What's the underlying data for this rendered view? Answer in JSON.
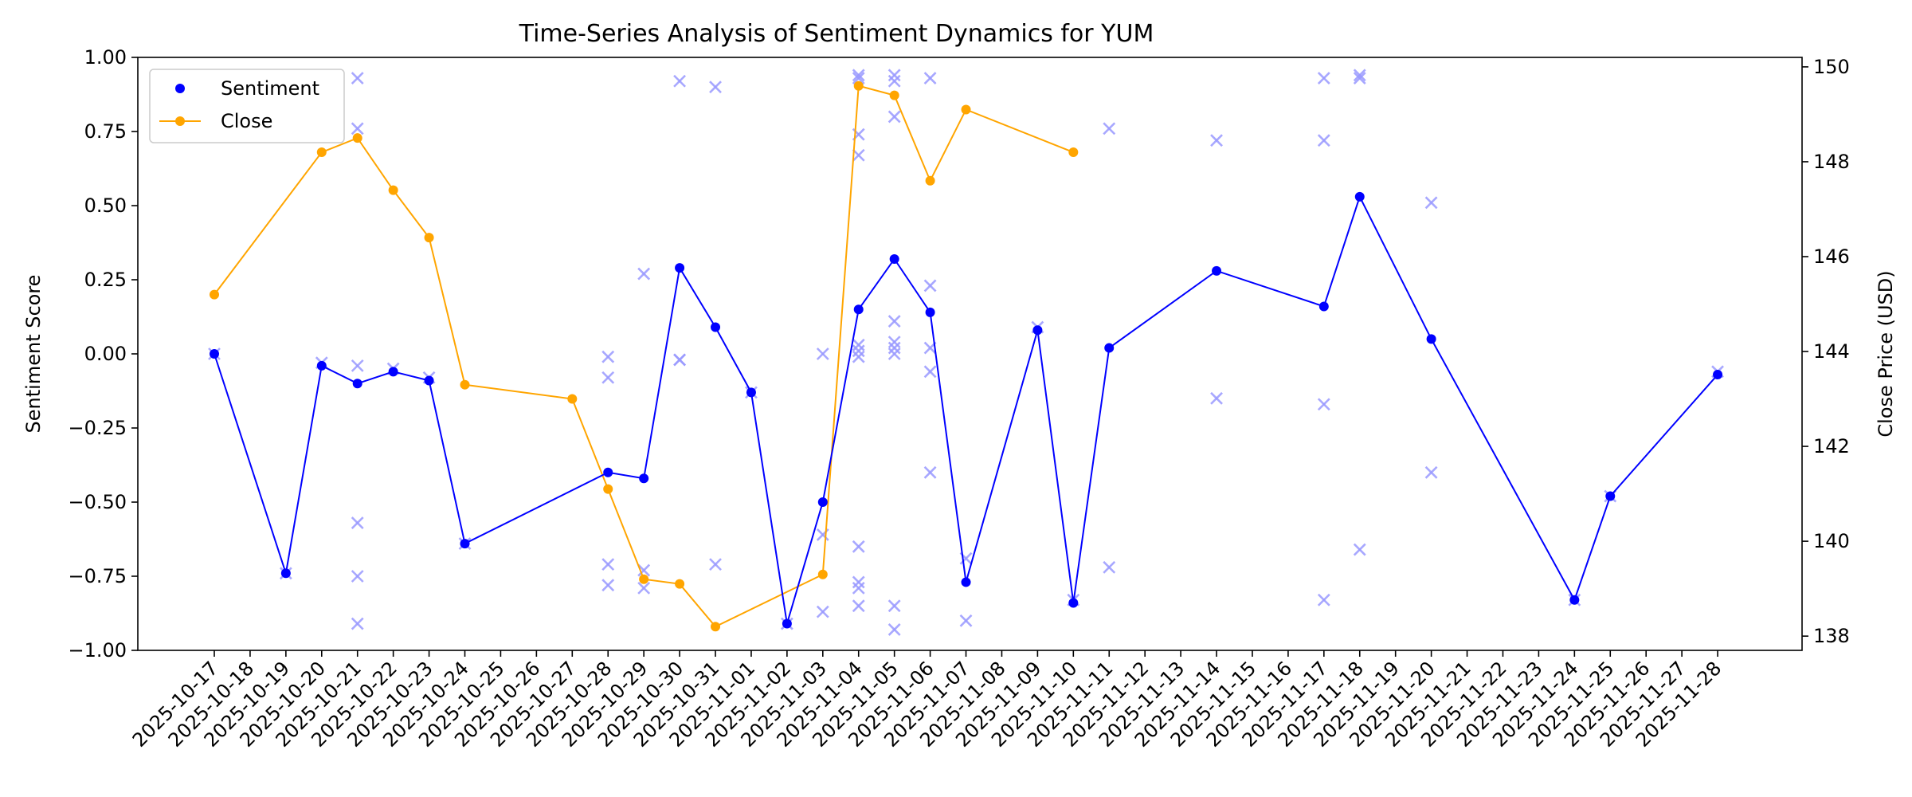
{
  "chart_data": {
    "type": "line",
    "title": "Time-Series Analysis of Sentiment Dynamics for YUM",
    "ylabel": "Sentiment Score",
    "y2label": "Close Price (USD)",
    "ylim": [
      -1.0,
      1.0
    ],
    "y2lim": [
      137.7,
      150.2
    ],
    "yticks": [
      "1.00",
      "0.75",
      "0.50",
      "0.25",
      "0.00",
      "−0.25",
      "−0.50",
      "−0.75",
      "−1.00"
    ],
    "y2ticks": [
      "150",
      "148",
      "146",
      "144",
      "142",
      "140",
      "138"
    ],
    "x_dates": [
      "2025-10-17",
      "2025-10-18",
      "2025-10-19",
      "2025-10-20",
      "2025-10-21",
      "2025-10-22",
      "2025-10-23",
      "2025-10-24",
      "2025-10-25",
      "2025-10-26",
      "2025-10-27",
      "2025-10-28",
      "2025-10-29",
      "2025-10-30",
      "2025-10-31",
      "2025-11-01",
      "2025-11-02",
      "2025-11-03",
      "2025-11-04",
      "2025-11-05",
      "2025-11-06",
      "2025-11-07",
      "2025-11-08",
      "2025-11-09",
      "2025-11-10",
      "2025-11-11",
      "2025-11-12",
      "2025-11-13",
      "2025-11-14",
      "2025-11-15",
      "2025-11-16",
      "2025-11-17",
      "2025-11-18",
      "2025-11-19",
      "2025-11-20",
      "2025-11-21",
      "2025-11-22",
      "2025-11-23",
      "2025-11-24",
      "2025-11-25",
      "2025-11-26",
      "2025-11-27",
      "2025-11-28"
    ],
    "legend": {
      "placement": "top-left",
      "entries": [
        "Sentiment",
        "Close"
      ]
    },
    "colors": {
      "sentiment": "#0000ff",
      "close": "#ffa500",
      "scatter": "#9999ff"
    },
    "series": [
      {
        "name": "Sentiment",
        "axis": "left",
        "points": [
          [
            "2025-10-17",
            0.0
          ],
          [
            "2025-10-19",
            -0.74
          ],
          [
            "2025-10-20",
            -0.04
          ],
          [
            "2025-10-21",
            -0.1
          ],
          [
            "2025-10-22",
            -0.06
          ],
          [
            "2025-10-23",
            -0.09
          ],
          [
            "2025-10-24",
            -0.64
          ],
          [
            "2025-10-28",
            -0.4
          ],
          [
            "2025-10-29",
            -0.42
          ],
          [
            "2025-10-30",
            0.29
          ],
          [
            "2025-10-31",
            0.09
          ],
          [
            "2025-11-01",
            -0.13
          ],
          [
            "2025-11-02",
            -0.91
          ],
          [
            "2025-11-03",
            -0.5
          ],
          [
            "2025-11-04",
            0.15
          ],
          [
            "2025-11-05",
            0.32
          ],
          [
            "2025-11-06",
            0.14
          ],
          [
            "2025-11-07",
            -0.77
          ],
          [
            "2025-11-09",
            0.08
          ],
          [
            "2025-11-10",
            -0.84
          ],
          [
            "2025-11-11",
            0.02
          ],
          [
            "2025-11-14",
            0.28
          ],
          [
            "2025-11-17",
            0.16
          ],
          [
            "2025-11-18",
            0.53
          ],
          [
            "2025-11-20",
            0.05
          ],
          [
            "2025-11-24",
            -0.83
          ],
          [
            "2025-11-25",
            -0.48
          ],
          [
            "2025-11-28",
            -0.07
          ]
        ]
      },
      {
        "name": "Close",
        "axis": "right",
        "points": [
          [
            "2025-10-17",
            145.2
          ],
          [
            "2025-10-20",
            148.2
          ],
          [
            "2025-10-21",
            148.5
          ],
          [
            "2025-10-22",
            147.4
          ],
          [
            "2025-10-23",
            146.4
          ],
          [
            "2025-10-24",
            143.3
          ],
          [
            "2025-10-27",
            143.0
          ],
          [
            "2025-10-28",
            141.1
          ],
          [
            "2025-10-29",
            139.2
          ],
          [
            "2025-10-30",
            139.1
          ],
          [
            "2025-10-31",
            138.2
          ],
          [
            "2025-11-03",
            139.3
          ],
          [
            "2025-11-04",
            149.6
          ],
          [
            "2025-11-05",
            149.4
          ],
          [
            "2025-11-06",
            147.6
          ],
          [
            "2025-11-07",
            149.1
          ],
          [
            "2025-11-10",
            148.2
          ]
        ]
      }
    ],
    "scatter_points": [
      [
        "2025-10-17",
        0.0
      ],
      [
        "2025-10-19",
        -0.74
      ],
      [
        "2025-10-20",
        -0.03
      ],
      [
        "2025-10-21",
        0.93
      ],
      [
        "2025-10-21",
        0.76
      ],
      [
        "2025-10-21",
        -0.04
      ],
      [
        "2025-10-21",
        -0.57
      ],
      [
        "2025-10-21",
        -0.75
      ],
      [
        "2025-10-21",
        -0.91
      ],
      [
        "2025-10-22",
        -0.05
      ],
      [
        "2025-10-23",
        -0.08
      ],
      [
        "2025-10-24",
        -0.64
      ],
      [
        "2025-10-28",
        -0.01
      ],
      [
        "2025-10-28",
        -0.08
      ],
      [
        "2025-10-28",
        -0.71
      ],
      [
        "2025-10-28",
        -0.78
      ],
      [
        "2025-10-29",
        0.27
      ],
      [
        "2025-10-29",
        -0.73
      ],
      [
        "2025-10-29",
        -0.79
      ],
      [
        "2025-10-30",
        0.92
      ],
      [
        "2025-10-30",
        -0.02
      ],
      [
        "2025-10-30",
        -0.02
      ],
      [
        "2025-10-31",
        0.9
      ],
      [
        "2025-10-31",
        -0.71
      ],
      [
        "2025-11-01",
        -0.13
      ],
      [
        "2025-11-02",
        -0.91
      ],
      [
        "2025-11-03",
        0.0
      ],
      [
        "2025-11-03",
        -0.61
      ],
      [
        "2025-11-03",
        -0.87
      ],
      [
        "2025-11-04",
        0.94
      ],
      [
        "2025-11-04",
        0.93
      ],
      [
        "2025-11-04",
        0.74
      ],
      [
        "2025-11-04",
        0.67
      ],
      [
        "2025-11-04",
        0.03
      ],
      [
        "2025-11-04",
        0.01
      ],
      [
        "2025-11-04",
        -0.01
      ],
      [
        "2025-11-04",
        -0.65
      ],
      [
        "2025-11-04",
        -0.77
      ],
      [
        "2025-11-04",
        -0.79
      ],
      [
        "2025-11-04",
        -0.85
      ],
      [
        "2025-11-05",
        0.94
      ],
      [
        "2025-11-05",
        0.92
      ],
      [
        "2025-11-05",
        0.8
      ],
      [
        "2025-11-05",
        0.11
      ],
      [
        "2025-11-05",
        0.04
      ],
      [
        "2025-11-05",
        0.02
      ],
      [
        "2025-11-05",
        0.0
      ],
      [
        "2025-11-05",
        -0.85
      ],
      [
        "2025-11-05",
        -0.93
      ],
      [
        "2025-11-06",
        0.93
      ],
      [
        "2025-11-06",
        0.23
      ],
      [
        "2025-11-06",
        0.02
      ],
      [
        "2025-11-06",
        -0.06
      ],
      [
        "2025-11-06",
        -0.4
      ],
      [
        "2025-11-07",
        -0.69
      ],
      [
        "2025-11-07",
        -0.9
      ],
      [
        "2025-11-09",
        0.09
      ],
      [
        "2025-11-10",
        -0.83
      ],
      [
        "2025-11-11",
        0.76
      ],
      [
        "2025-11-11",
        -0.72
      ],
      [
        "2025-11-14",
        0.72
      ],
      [
        "2025-11-14",
        -0.15
      ],
      [
        "2025-11-17",
        0.93
      ],
      [
        "2025-11-17",
        0.72
      ],
      [
        "2025-11-17",
        -0.17
      ],
      [
        "2025-11-17",
        -0.83
      ],
      [
        "2025-11-18",
        0.94
      ],
      [
        "2025-11-18",
        0.93
      ],
      [
        "2025-11-18",
        -0.66
      ],
      [
        "2025-11-20",
        0.51
      ],
      [
        "2025-11-20",
        -0.4
      ],
      [
        "2025-11-24",
        -0.83
      ],
      [
        "2025-11-25",
        -0.48
      ],
      [
        "2025-11-28",
        -0.06
      ]
    ]
  }
}
